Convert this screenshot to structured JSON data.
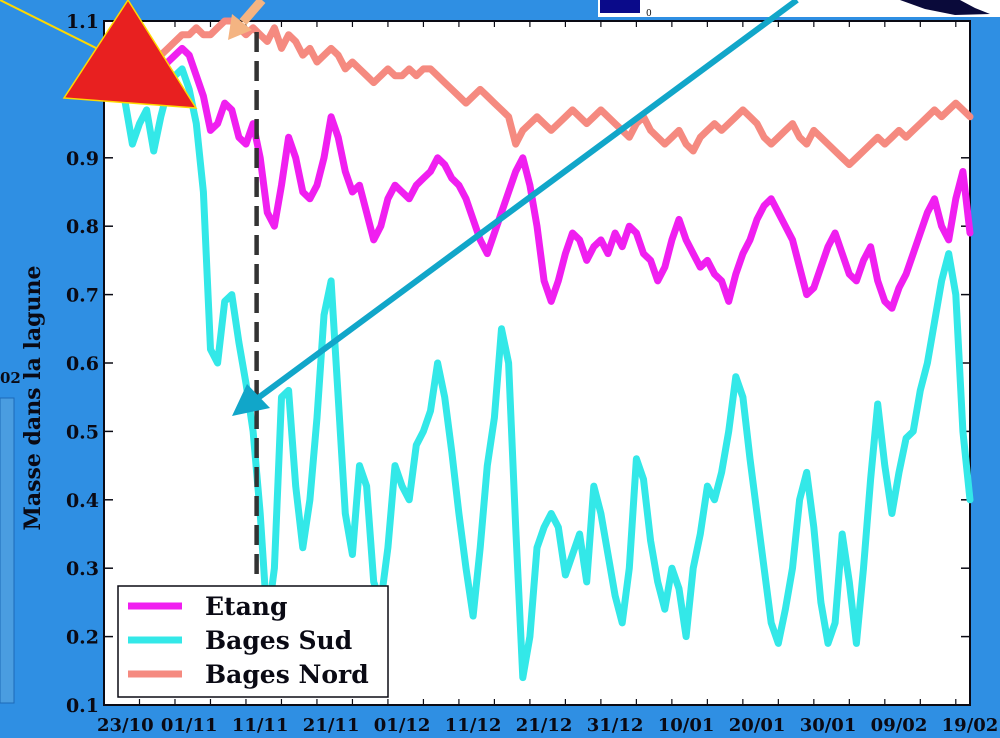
{
  "chart_data": {
    "type": "line",
    "ylabel": "Masse dans la lagune",
    "xlabel": "",
    "title": "",
    "ylim": [
      0.1,
      1.1
    ],
    "y_ticks": [
      0.1,
      0.2,
      0.3,
      0.4,
      0.5,
      0.6,
      0.7,
      0.8,
      0.9,
      1.1
    ],
    "x_ticks": [
      "23/10",
      "01/11",
      "11/11",
      "21/11",
      "01/12",
      "11/12",
      "21/12",
      "31/12",
      "10/01",
      "20/01",
      "30/01",
      "09/02",
      "19/02"
    ],
    "x_tick_days": [
      0,
      9,
      19,
      29,
      39,
      49,
      59,
      69,
      79,
      89,
      99,
      109,
      119
    ],
    "xlim": [
      -3,
      119
    ],
    "event_marker_day": 18.5,
    "legend_position": "bottom-left",
    "series": [
      {
        "name": "Etang",
        "color": "#f01ff0",
        "x": [
          0,
          1,
          2,
          3,
          4,
          5,
          6,
          7,
          8,
          9,
          10,
          11,
          12,
          13,
          14,
          15,
          16,
          17,
          18,
          19,
          20,
          21,
          22,
          23,
          24,
          25,
          26,
          27,
          28,
          29,
          30,
          31,
          32,
          33,
          34,
          35,
          36,
          37,
          38,
          39,
          40,
          41,
          42,
          43,
          44,
          45,
          46,
          47,
          48,
          49,
          50,
          51,
          52,
          53,
          54,
          55,
          56,
          57,
          58,
          59,
          60,
          61,
          62,
          63,
          64,
          65,
          66,
          67,
          68,
          69,
          70,
          71,
          72,
          73,
          74,
          75,
          76,
          77,
          78,
          79,
          80,
          81,
          82,
          83,
          84,
          85,
          86,
          87,
          88,
          89,
          90,
          91,
          92,
          93,
          94,
          95,
          96,
          97,
          98,
          99,
          100,
          101,
          102,
          103,
          104,
          105,
          106,
          107,
          108,
          109,
          110,
          111,
          112,
          113,
          114,
          115,
          116,
          117,
          118,
          119
        ],
        "values": [
          0.99,
          0.99,
          1.0,
          1.02,
          1.0,
          1.03,
          1.04,
          1.05,
          1.06,
          1.05,
          1.02,
          0.99,
          0.94,
          0.95,
          0.98,
          0.97,
          0.93,
          0.92,
          0.95,
          0.9,
          0.82,
          0.8,
          0.86,
          0.93,
          0.9,
          0.85,
          0.84,
          0.86,
          0.9,
          0.96,
          0.93,
          0.88,
          0.85,
          0.86,
          0.82,
          0.78,
          0.8,
          0.84,
          0.86,
          0.85,
          0.84,
          0.86,
          0.87,
          0.88,
          0.9,
          0.89,
          0.87,
          0.86,
          0.84,
          0.81,
          0.78,
          0.76,
          0.79,
          0.82,
          0.85,
          0.88,
          0.9,
          0.86,
          0.8,
          0.72,
          0.69,
          0.72,
          0.76,
          0.79,
          0.78,
          0.75,
          0.77,
          0.78,
          0.76,
          0.79,
          0.77,
          0.8,
          0.79,
          0.76,
          0.75,
          0.72,
          0.74,
          0.78,
          0.81,
          0.78,
          0.76,
          0.74,
          0.75,
          0.73,
          0.72,
          0.69,
          0.73,
          0.76,
          0.78,
          0.81,
          0.83,
          0.84,
          0.82,
          0.8,
          0.78,
          0.74,
          0.7,
          0.71,
          0.74,
          0.77,
          0.79,
          0.76,
          0.73,
          0.72,
          0.75,
          0.77,
          0.72,
          0.69,
          0.68,
          0.71,
          0.73,
          0.76,
          0.79,
          0.82,
          0.84,
          0.8,
          0.78,
          0.84,
          0.88,
          0.79
        ]
      },
      {
        "name": "Bages Sud",
        "color": "#33e8e8",
        "x": [
          0,
          1,
          2,
          3,
          4,
          5,
          6,
          7,
          8,
          9,
          10,
          11,
          12,
          13,
          14,
          15,
          16,
          17,
          18,
          19,
          20,
          21,
          22,
          23,
          24,
          25,
          26,
          27,
          28,
          29,
          30,
          31,
          32,
          33,
          34,
          35,
          36,
          37,
          38,
          39,
          40,
          41,
          42,
          43,
          44,
          45,
          46,
          47,
          48,
          49,
          50,
          51,
          52,
          53,
          54,
          55,
          56,
          57,
          58,
          59,
          60,
          61,
          62,
          63,
          64,
          65,
          66,
          67,
          68,
          69,
          70,
          71,
          72,
          73,
          74,
          75,
          76,
          77,
          78,
          79,
          80,
          81,
          82,
          83,
          84,
          85,
          86,
          87,
          88,
          89,
          90,
          91,
          92,
          93,
          94,
          95,
          96,
          97,
          98,
          99,
          100,
          101,
          102,
          103,
          104,
          105,
          106,
          107,
          108,
          109,
          110,
          111,
          112,
          113,
          114,
          115,
          116,
          117,
          118,
          119
        ],
        "values": [
          0.98,
          0.92,
          0.95,
          0.97,
          0.91,
          0.96,
          1.0,
          1.02,
          1.03,
          1.0,
          0.95,
          0.85,
          0.62,
          0.6,
          0.69,
          0.7,
          0.63,
          0.57,
          0.5,
          0.38,
          0.22,
          0.3,
          0.55,
          0.56,
          0.42,
          0.33,
          0.4,
          0.52,
          0.67,
          0.72,
          0.55,
          0.38,
          0.32,
          0.45,
          0.42,
          0.28,
          0.25,
          0.33,
          0.45,
          0.42,
          0.4,
          0.48,
          0.5,
          0.53,
          0.6,
          0.55,
          0.47,
          0.38,
          0.3,
          0.23,
          0.33,
          0.45,
          0.52,
          0.65,
          0.6,
          0.36,
          0.14,
          0.2,
          0.33,
          0.36,
          0.38,
          0.36,
          0.29,
          0.32,
          0.35,
          0.28,
          0.42,
          0.38,
          0.32,
          0.26,
          0.22,
          0.3,
          0.46,
          0.43,
          0.34,
          0.28,
          0.24,
          0.3,
          0.27,
          0.2,
          0.3,
          0.35,
          0.42,
          0.4,
          0.44,
          0.5,
          0.58,
          0.55,
          0.46,
          0.38,
          0.3,
          0.22,
          0.19,
          0.24,
          0.3,
          0.4,
          0.44,
          0.36,
          0.25,
          0.19,
          0.22,
          0.35,
          0.28,
          0.19,
          0.3,
          0.43,
          0.54,
          0.45,
          0.38,
          0.44,
          0.49,
          0.5,
          0.56,
          0.6,
          0.66,
          0.72,
          0.76,
          0.7,
          0.5,
          0.4
        ]
      },
      {
        "name": "Bages Nord",
        "color": "#f58a80",
        "x": [
          0,
          1,
          2,
          3,
          4,
          5,
          6,
          7,
          8,
          9,
          10,
          11,
          12,
          13,
          14,
          15,
          16,
          17,
          18,
          19,
          20,
          21,
          22,
          23,
          24,
          25,
          26,
          27,
          28,
          29,
          30,
          31,
          32,
          33,
          34,
          35,
          36,
          37,
          38,
          39,
          40,
          41,
          42,
          43,
          44,
          45,
          46,
          47,
          48,
          49,
          50,
          51,
          52,
          53,
          54,
          55,
          56,
          57,
          58,
          59,
          60,
          61,
          62,
          63,
          64,
          65,
          66,
          67,
          68,
          69,
          70,
          71,
          72,
          73,
          74,
          75,
          76,
          77,
          78,
          79,
          80,
          81,
          82,
          83,
          84,
          85,
          86,
          87,
          88,
          89,
          90,
          91,
          92,
          93,
          94,
          95,
          96,
          97,
          98,
          99,
          100,
          101,
          102,
          103,
          104,
          105,
          106,
          107,
          108,
          109,
          110,
          111,
          112,
          113,
          114,
          115,
          116,
          117,
          118,
          119
        ],
        "values": [
          0.99,
          1.0,
          1.02,
          1.03,
          1.04,
          1.05,
          1.06,
          1.07,
          1.08,
          1.08,
          1.09,
          1.08,
          1.08,
          1.09,
          1.1,
          1.1,
          1.09,
          1.08,
          1.09,
          1.08,
          1.07,
          1.09,
          1.06,
          1.08,
          1.07,
          1.05,
          1.06,
          1.04,
          1.05,
          1.06,
          1.05,
          1.03,
          1.04,
          1.03,
          1.02,
          1.01,
          1.02,
          1.03,
          1.02,
          1.02,
          1.03,
          1.02,
          1.03,
          1.03,
          1.02,
          1.01,
          1.0,
          0.99,
          0.98,
          0.99,
          1.0,
          0.99,
          0.98,
          0.97,
          0.96,
          0.92,
          0.94,
          0.95,
          0.96,
          0.95,
          0.94,
          0.95,
          0.96,
          0.97,
          0.96,
          0.95,
          0.96,
          0.97,
          0.96,
          0.95,
          0.94,
          0.93,
          0.95,
          0.96,
          0.94,
          0.93,
          0.92,
          0.93,
          0.94,
          0.92,
          0.91,
          0.93,
          0.94,
          0.95,
          0.94,
          0.95,
          0.96,
          0.97,
          0.96,
          0.95,
          0.93,
          0.92,
          0.93,
          0.94,
          0.95,
          0.93,
          0.92,
          0.94,
          0.93,
          0.92,
          0.91,
          0.9,
          0.89,
          0.9,
          0.91,
          0.92,
          0.93,
          0.92,
          0.93,
          0.94,
          0.93,
          0.94,
          0.95,
          0.96,
          0.97,
          0.96,
          0.97,
          0.98,
          0.97,
          0.96
        ]
      }
    ]
  },
  "colors": {
    "background": "#2f8fe3",
    "plot_background": "#ffffff",
    "marker_red": "#e82020",
    "arrow_blue": "#11a6c9",
    "arrow_orange": "#f4b482",
    "marker_line": "#333333"
  },
  "overlay": {
    "left_edge_label": "02",
    "top_right_tick": "0"
  }
}
